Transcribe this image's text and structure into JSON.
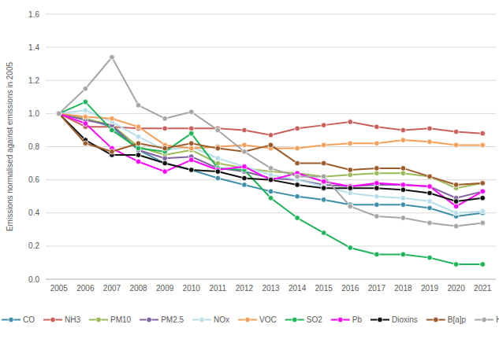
{
  "chart_data": {
    "type": "line",
    "y_label": "Emissions normalised against emissions in 2005",
    "categories": [
      "2005",
      "2006",
      "2007",
      "2008",
      "2009",
      "2010",
      "2011",
      "2012",
      "2013",
      "2014",
      "2015",
      "2016",
      "2017",
      "2018",
      "2019",
      "2020",
      "2021"
    ],
    "ylim": [
      0,
      1.6
    ],
    "yticks": [
      {
        "value": 0,
        "label": "0.0"
      },
      0.2,
      0.4,
      0.6,
      0.8,
      {
        "value": 1,
        "label": "1.0"
      },
      1.2,
      1.4,
      1.6
    ],
    "grid": true,
    "legend": "bottom",
    "marker": "circle",
    "series": [
      {
        "name": "CO",
        "color": "#3f8fa8",
        "values": [
          1.0,
          0.97,
          0.92,
          0.78,
          0.7,
          0.66,
          0.61,
          0.57,
          0.53,
          0.5,
          0.48,
          0.45,
          0.45,
          0.45,
          0.43,
          0.38,
          0.4
        ]
      },
      {
        "name": "NH3",
        "color": "#c9605c",
        "values": [
          1.0,
          0.92,
          0.92,
          0.91,
          0.91,
          0.91,
          0.91,
          0.9,
          0.87,
          0.91,
          0.93,
          0.95,
          0.92,
          0.9,
          0.91,
          0.89,
          0.88
        ]
      },
      {
        "name": "PM10",
        "color": "#9bbb59",
        "values": [
          1.0,
          0.97,
          0.93,
          0.8,
          0.75,
          0.78,
          0.7,
          0.67,
          0.65,
          0.64,
          0.62,
          0.63,
          0.64,
          0.64,
          0.62,
          0.55,
          0.58
        ]
      },
      {
        "name": "PM2.5",
        "color": "#8064a2",
        "values": [
          1.0,
          0.96,
          0.93,
          0.78,
          0.73,
          0.74,
          0.67,
          0.65,
          0.61,
          0.6,
          0.57,
          0.56,
          0.57,
          0.57,
          0.56,
          0.49,
          0.53
        ]
      },
      {
        "name": "NOx",
        "color": "#b7dee8",
        "values": [
          1.0,
          1.02,
          0.95,
          0.86,
          0.78,
          0.8,
          0.73,
          0.68,
          0.63,
          0.6,
          0.56,
          0.52,
          0.5,
          0.49,
          0.47,
          0.4,
          0.41
        ]
      },
      {
        "name": "VOC",
        "color": "#f5a05a",
        "values": [
          1.0,
          0.98,
          0.97,
          0.92,
          0.81,
          0.79,
          0.8,
          0.81,
          0.79,
          0.79,
          0.81,
          0.82,
          0.82,
          0.84,
          0.83,
          0.81,
          0.81
        ]
      },
      {
        "name": "SO2",
        "color": "#1fb35a",
        "values": [
          1.0,
          1.07,
          0.9,
          0.79,
          0.77,
          0.88,
          0.67,
          0.66,
          0.49,
          0.37,
          0.28,
          0.19,
          0.15,
          0.15,
          0.13,
          0.09,
          0.09
        ]
      },
      {
        "name": "Pb",
        "color": "#ff00ff",
        "values": [
          1.0,
          0.94,
          0.79,
          0.71,
          0.65,
          0.72,
          0.66,
          0.68,
          0.6,
          0.64,
          0.59,
          0.56,
          0.58,
          0.57,
          0.56,
          0.44,
          0.53
        ]
      },
      {
        "name": "Dioxins",
        "color": "#111111",
        "values": [
          1.0,
          0.84,
          0.75,
          0.75,
          0.7,
          0.66,
          0.65,
          0.61,
          0.6,
          0.57,
          0.55,
          0.55,
          0.55,
          0.54,
          0.52,
          0.47,
          0.49
        ]
      },
      {
        "name": "B[a]p",
        "color": "#9c5b2a",
        "values": [
          1.0,
          0.82,
          0.77,
          0.82,
          0.79,
          0.82,
          0.79,
          0.77,
          0.81,
          0.7,
          0.7,
          0.66,
          0.67,
          0.67,
          0.62,
          0.57,
          0.58
        ]
      },
      {
        "name": "Hg",
        "color": "#a6a6a6",
        "values": [
          1.0,
          1.15,
          1.34,
          1.05,
          0.97,
          1.01,
          0.9,
          0.77,
          0.67,
          0.62,
          0.62,
          0.44,
          0.38,
          0.37,
          0.34,
          0.32,
          0.34
        ]
      }
    ]
  }
}
